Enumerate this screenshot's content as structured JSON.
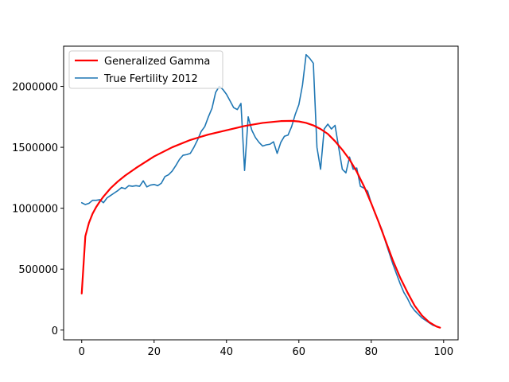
{
  "chart_data": {
    "type": "line",
    "xlim": [
      -5,
      104
    ],
    "ylim": [
      -80000,
      2330000
    ],
    "x_ticks": [
      0,
      20,
      40,
      60,
      80,
      100
    ],
    "y_ticks": [
      0,
      500000,
      1000000,
      1500000,
      2000000
    ],
    "x_tick_labels": [
      "0",
      "20",
      "40",
      "60",
      "80",
      "100"
    ],
    "y_tick_labels": [
      "0",
      "500000",
      "1000000",
      "1500000",
      "2000000"
    ],
    "grid": false,
    "legend": {
      "placement": "top-left"
    },
    "series": [
      {
        "name": "Generalized Gamma",
        "color": "#ff0000",
        "x": [
          0,
          1,
          2,
          3,
          4,
          5,
          6,
          8,
          10,
          12,
          15,
          20,
          25,
          30,
          35,
          40,
          45,
          50,
          55,
          58,
          60,
          62,
          64,
          66,
          68,
          70,
          72,
          74,
          76,
          78,
          80,
          82,
          84,
          86,
          88,
          90,
          92,
          94,
          96,
          98,
          99
        ],
        "values": [
          300000,
          770000,
          880000,
          955000,
          1010000,
          1055000,
          1095000,
          1165000,
          1220000,
          1268000,
          1330000,
          1425000,
          1500000,
          1560000,
          1605000,
          1640000,
          1675000,
          1700000,
          1715000,
          1717000,
          1712000,
          1700000,
          1680000,
          1650000,
          1610000,
          1550000,
          1480000,
          1400000,
          1300000,
          1180000,
          1040000,
          890000,
          730000,
          570000,
          430000,
          310000,
          200000,
          120000,
          65000,
          30000,
          20000
        ]
      },
      {
        "name": "True Fertility 2012",
        "color": "#1f77b4",
        "x": [
          0,
          1,
          2,
          3,
          4,
          5,
          6,
          7,
          8,
          9,
          10,
          11,
          12,
          13,
          14,
          15,
          16,
          17,
          18,
          19,
          20,
          21,
          22,
          23,
          24,
          25,
          26,
          27,
          28,
          29,
          30,
          31,
          32,
          33,
          34,
          35,
          36,
          37,
          38,
          39,
          40,
          41,
          42,
          43,
          44,
          45,
          46,
          47,
          48,
          49,
          50,
          51,
          52,
          53,
          54,
          55,
          56,
          57,
          58,
          59,
          60,
          61,
          62,
          63,
          64,
          65,
          66,
          67,
          68,
          69,
          70,
          71,
          72,
          73,
          74,
          75,
          76,
          77,
          78,
          79,
          80,
          81,
          82,
          83,
          84,
          85,
          86,
          87,
          88,
          89,
          90,
          91,
          92,
          93,
          94,
          95,
          96,
          97,
          98,
          99
        ],
        "values": [
          1045000,
          1030000,
          1040000,
          1065000,
          1065000,
          1070000,
          1045000,
          1085000,
          1105000,
          1125000,
          1145000,
          1170000,
          1160000,
          1185000,
          1180000,
          1185000,
          1180000,
          1225000,
          1175000,
          1190000,
          1195000,
          1185000,
          1205000,
          1260000,
          1275000,
          1305000,
          1350000,
          1400000,
          1435000,
          1440000,
          1450000,
          1500000,
          1560000,
          1630000,
          1670000,
          1750000,
          1820000,
          1950000,
          2000000,
          1975000,
          1935000,
          1880000,
          1825000,
          1810000,
          1860000,
          1310000,
          1750000,
          1640000,
          1580000,
          1540000,
          1510000,
          1520000,
          1525000,
          1545000,
          1450000,
          1540000,
          1590000,
          1600000,
          1670000,
          1770000,
          1850000,
          2010000,
          2260000,
          2230000,
          2190000,
          1500000,
          1320000,
          1650000,
          1690000,
          1650000,
          1680000,
          1500000,
          1320000,
          1290000,
          1420000,
          1320000,
          1330000,
          1180000,
          1165000,
          1140000,
          1040000,
          960000,
          890000,
          820000,
          720000,
          630000,
          540000,
          460000,
          380000,
          310000,
          260000,
          200000,
          160000,
          130000,
          100000,
          80000,
          60000,
          40000,
          30000,
          20000
        ]
      }
    ]
  }
}
